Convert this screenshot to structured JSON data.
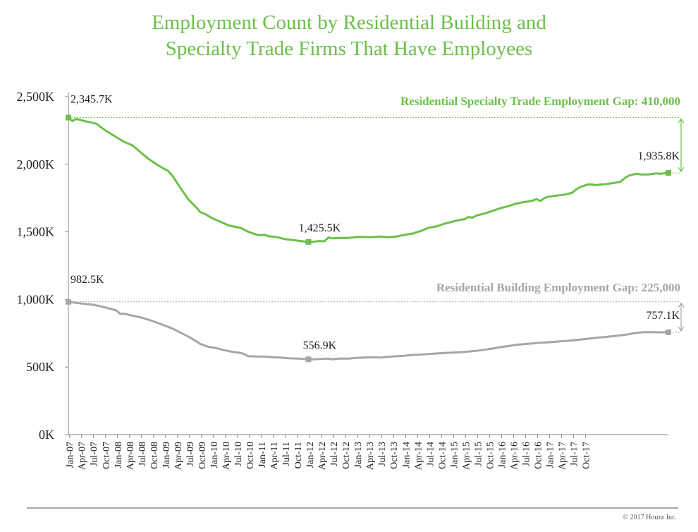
{
  "title_line1": "Employment Count by Residential Building and",
  "title_line2": "Specialty Trade Firms That Have Employees",
  "copyright": "© 2017 Houzz Inc.",
  "chart_data": {
    "type": "line",
    "title": "Employment Count by Residential Building and Specialty Trade Firms That Have Employees",
    "xlabel": "",
    "ylabel": "",
    "ylim": [
      0,
      2500
    ],
    "y_ticks": [
      0,
      500,
      1000,
      1500,
      2000,
      2500
    ],
    "y_tick_labels": [
      "0K",
      "500K",
      "1,000K",
      "1,500K",
      "2,000K",
      "2,500K"
    ],
    "x_tick_labels": [
      "Jan-07",
      "Apr-07",
      "Jul-07",
      "Oct-07",
      "Jan-08",
      "Apr-08",
      "Jul-08",
      "Oct-08",
      "Jan-09",
      "Apr-09",
      "Jul-09",
      "Oct-09",
      "Jan-10",
      "Apr-10",
      "Jul-10",
      "Oct-10",
      "Jan-11",
      "Apr-11",
      "Jul-11",
      "Oct-11",
      "Jan-12",
      "Apr-12",
      "Jul-12",
      "Oct-12",
      "Jan-13",
      "Apr-13",
      "Jul-13",
      "Oct-13",
      "Jan-14",
      "Apr-14",
      "Jul-14",
      "Oct-14",
      "Jan-15",
      "Apr-15",
      "Jul-15",
      "Oct-15",
      "Jan-16",
      "Apr-16",
      "Jul-16",
      "Oct-16",
      "Jan-17",
      "Apr-17",
      "Jul-17",
      "Oct-17"
    ],
    "x_range_months": [
      0,
      129
    ],
    "colors": {
      "specialty": "#6cc04a",
      "building": "#a6a6a6",
      "axis": "#888888"
    },
    "series": [
      {
        "name": "Residential Specialty Trade",
        "points": [
          [
            0,
            2345.7
          ],
          [
            1,
            2320
          ],
          [
            2,
            2335
          ],
          [
            4,
            2320
          ],
          [
            7,
            2300
          ],
          [
            9,
            2255
          ],
          [
            12,
            2200
          ],
          [
            14,
            2165
          ],
          [
            16,
            2140
          ],
          [
            18,
            2090
          ],
          [
            20,
            2040
          ],
          [
            22,
            2000
          ],
          [
            24,
            1965
          ],
          [
            25,
            1950
          ],
          [
            26,
            1915
          ],
          [
            27,
            1870
          ],
          [
            28,
            1825
          ],
          [
            30,
            1740
          ],
          [
            32,
            1680
          ],
          [
            33,
            1645
          ],
          [
            34,
            1635
          ],
          [
            36,
            1600
          ],
          [
            38,
            1575
          ],
          [
            40,
            1548
          ],
          [
            42,
            1535
          ],
          [
            43,
            1530
          ],
          [
            45,
            1500
          ],
          [
            47,
            1480
          ],
          [
            48,
            1475
          ],
          [
            49,
            1478
          ],
          [
            50,
            1468
          ],
          [
            52,
            1462
          ],
          [
            54,
            1447
          ],
          [
            56,
            1440
          ],
          [
            58,
            1432
          ],
          [
            60,
            1425.5
          ],
          [
            61,
            1425.5
          ],
          [
            62,
            1430
          ],
          [
            63,
            1432
          ],
          [
            64,
            1430
          ],
          [
            65,
            1458
          ],
          [
            66,
            1452
          ],
          [
            68,
            1455
          ],
          [
            70,
            1455
          ],
          [
            72,
            1462
          ],
          [
            74,
            1463
          ],
          [
            75,
            1460
          ],
          [
            78,
            1465
          ],
          [
            80,
            1460
          ],
          [
            82,
            1465
          ],
          [
            84,
            1478
          ],
          [
            86,
            1487
          ],
          [
            88,
            1505
          ],
          [
            90,
            1530
          ],
          [
            92,
            1540
          ],
          [
            94,
            1560
          ],
          [
            96,
            1575
          ],
          [
            98,
            1590
          ],
          [
            99,
            1593
          ],
          [
            100,
            1610
          ],
          [
            101,
            1605
          ],
          [
            102,
            1620
          ],
          [
            104,
            1635
          ],
          [
            106,
            1655
          ],
          [
            108,
            1675
          ],
          [
            110,
            1690
          ],
          [
            112,
            1710
          ],
          [
            114,
            1720
          ],
          [
            116,
            1730
          ],
          [
            117,
            1742
          ],
          [
            118,
            1728
          ],
          [
            119,
            1750
          ],
          [
            120,
            1760
          ],
          [
            122,
            1768
          ],
          [
            124,
            1775
          ],
          [
            126,
            1790
          ],
          [
            127,
            1815
          ],
          [
            128,
            1832
          ],
          [
            129,
            1842
          ],
          [
            130,
            1852
          ],
          [
            131,
            1850
          ],
          [
            132,
            1845
          ],
          [
            133,
            1850
          ],
          [
            134,
            1852
          ],
          [
            136,
            1860
          ],
          [
            138,
            1870
          ],
          [
            139,
            1895
          ],
          [
            140,
            1915
          ],
          [
            141,
            1922
          ],
          [
            142,
            1930
          ],
          [
            143,
            1925
          ],
          [
            145,
            1925
          ],
          [
            147,
            1932
          ],
          [
            148,
            1930
          ],
          [
            150,
            1935.8
          ]
        ]
      },
      {
        "name": "Residential Building",
        "points": [
          [
            0,
            982.5
          ],
          [
            2,
            975
          ],
          [
            4,
            967
          ],
          [
            6,
            962
          ],
          [
            8,
            950
          ],
          [
            10,
            935
          ],
          [
            12,
            918
          ],
          [
            13,
            893
          ],
          [
            14,
            895
          ],
          [
            16,
            880
          ],
          [
            18,
            868
          ],
          [
            20,
            850
          ],
          [
            22,
            830
          ],
          [
            24,
            808
          ],
          [
            26,
            785
          ],
          [
            28,
            755
          ],
          [
            30,
            725
          ],
          [
            32,
            690
          ],
          [
            33,
            670
          ],
          [
            35,
            650
          ],
          [
            37,
            640
          ],
          [
            39,
            625
          ],
          [
            41,
            612
          ],
          [
            43,
            605
          ],
          [
            44,
            595
          ],
          [
            45,
            580
          ],
          [
            47,
            578
          ],
          [
            49,
            577
          ],
          [
            51,
            572
          ],
          [
            53,
            570
          ],
          [
            55,
            565
          ],
          [
            57,
            563
          ],
          [
            59,
            560
          ],
          [
            60,
            556.9
          ],
          [
            61,
            557
          ],
          [
            63,
            560
          ],
          [
            65,
            562
          ],
          [
            66,
            557
          ],
          [
            68,
            563
          ],
          [
            70,
            562
          ],
          [
            72,
            568
          ],
          [
            74,
            570
          ],
          [
            76,
            572
          ],
          [
            78,
            570
          ],
          [
            80,
            575
          ],
          [
            82,
            580
          ],
          [
            84,
            583
          ],
          [
            86,
            590
          ],
          [
            88,
            592
          ],
          [
            90,
            596
          ],
          [
            92,
            600
          ],
          [
            94,
            604
          ],
          [
            96,
            607
          ],
          [
            98,
            610
          ],
          [
            100,
            615
          ],
          [
            102,
            620
          ],
          [
            104,
            628
          ],
          [
            106,
            637
          ],
          [
            108,
            647
          ],
          [
            110,
            655
          ],
          [
            112,
            665
          ],
          [
            114,
            670
          ],
          [
            116,
            675
          ],
          [
            118,
            680
          ],
          [
            120,
            683
          ],
          [
            122,
            688
          ],
          [
            124,
            693
          ],
          [
            126,
            697
          ],
          [
            128,
            703
          ],
          [
            130,
            710
          ],
          [
            132,
            717
          ],
          [
            134,
            722
          ],
          [
            136,
            728
          ],
          [
            138,
            735
          ],
          [
            140,
            742
          ],
          [
            141,
            748
          ],
          [
            142,
            752
          ],
          [
            144,
            758
          ],
          [
            146,
            758
          ],
          [
            148,
            757
          ],
          [
            150,
            757.1
          ]
        ]
      }
    ],
    "annotations": [
      {
        "series": "Residential Specialty Trade",
        "month": 0,
        "value": 2345.7,
        "label": "2,345.7K"
      },
      {
        "series": "Residential Specialty Trade",
        "month": 60,
        "value": 1425.5,
        "label": "1,425.5K"
      },
      {
        "series": "Residential Specialty Trade",
        "month": 150,
        "value": 1935.8,
        "label": "1,935.8K"
      },
      {
        "series": "Residential Building",
        "month": 0,
        "value": 982.5,
        "label": "982.5K"
      },
      {
        "series": "Residential Building",
        "month": 60,
        "value": 556.9,
        "label": "556.9K"
      },
      {
        "series": "Residential Building",
        "month": 150,
        "value": 757.1,
        "label": "757.1K"
      }
    ],
    "gaps": [
      {
        "label": "Residential Specialty Trade Employment Gap: 410,000",
        "from": 2345.7,
        "to": 1935.8,
        "color": "#6cc04a"
      },
      {
        "label": "Residential Building Employment Gap: 225,000",
        "from": 982.5,
        "to": 757.1,
        "color": "#a6a6a6"
      }
    ]
  }
}
